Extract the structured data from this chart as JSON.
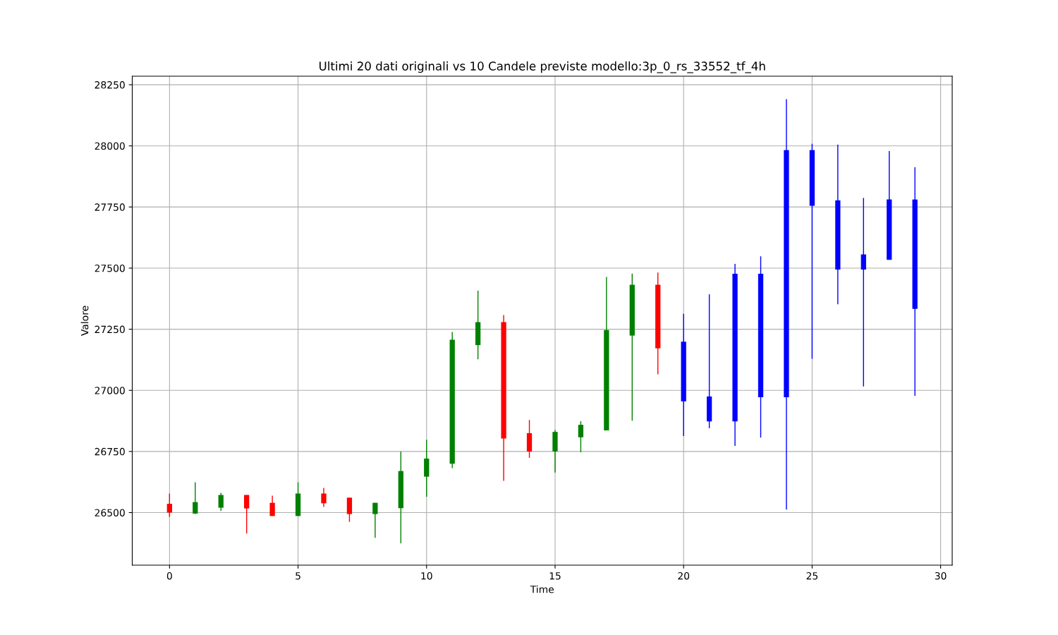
{
  "chart_data": {
    "type": "candlestick",
    "title": "Ultimi 20 dati originali vs 10 Candele previste modello:3p_0_rs_33552_tf_4h",
    "xlabel": "Time",
    "ylabel": "Valore",
    "x": [
      0,
      1,
      2,
      3,
      4,
      5,
      6,
      7,
      8,
      9,
      10,
      11,
      12,
      13,
      14,
      15,
      16,
      17,
      18,
      19,
      20,
      21,
      22,
      23,
      24,
      25,
      26,
      27,
      28,
      29
    ],
    "ohlc": [
      [
        26536,
        26578,
        26482,
        26500
      ],
      [
        26496,
        26624,
        26494,
        26543
      ],
      [
        26520,
        26581,
        26507,
        26572
      ],
      [
        26572,
        26572,
        26414,
        26517
      ],
      [
        26540,
        26569,
        26486,
        26486
      ],
      [
        26486,
        26624,
        26486,
        26578
      ],
      [
        26578,
        26601,
        26523,
        26538
      ],
      [
        26561,
        26561,
        26462,
        26494
      ],
      [
        26494,
        26540,
        26397,
        26540
      ],
      [
        26518,
        26750,
        26374,
        26670
      ],
      [
        26647,
        26798,
        26565,
        26721
      ],
      [
        26700,
        27239,
        26682,
        27207
      ],
      [
        27185,
        27408,
        27127,
        27279
      ],
      [
        27279,
        27308,
        26630,
        26803
      ],
      [
        26825,
        26879,
        26724,
        26750
      ],
      [
        26750,
        26838,
        26664,
        26830
      ],
      [
        26808,
        26874,
        26747,
        26859
      ],
      [
        26836,
        27464,
        26836,
        27247
      ],
      [
        27224,
        27478,
        26876,
        27432
      ],
      [
        27432,
        27482,
        27066,
        27172
      ],
      [
        27199,
        27313,
        26813,
        26955
      ],
      [
        26975,
        27393,
        26845,
        26873
      ],
      [
        26873,
        27517,
        26773,
        27477
      ],
      [
        27477,
        27548,
        26807,
        26972
      ],
      [
        26972,
        28191,
        26512,
        27983
      ],
      [
        27983,
        28009,
        27129,
        27755
      ],
      [
        27777,
        28005,
        27352,
        27494
      ],
      [
        27494,
        27787,
        27016,
        27556
      ],
      [
        27534,
        27979,
        27534,
        27781
      ],
      [
        27781,
        27913,
        26978,
        27333
      ]
    ],
    "colors": [
      "#ff0000",
      "#008000",
      "#008000",
      "#ff0000",
      "#ff0000",
      "#008000",
      "#ff0000",
      "#ff0000",
      "#008000",
      "#008000",
      "#008000",
      "#008000",
      "#008000",
      "#ff0000",
      "#ff0000",
      "#008000",
      "#008000",
      "#008000",
      "#008000",
      "#ff0000",
      "#0000ff",
      "#0000ff",
      "#0000ff",
      "#0000ff",
      "#0000ff",
      "#0000ff",
      "#0000ff",
      "#0000ff",
      "#0000ff",
      "#0000ff"
    ],
    "xlim": [
      -1.45,
      30.45
    ],
    "xticks": [
      0,
      5,
      10,
      15,
      20,
      25,
      30
    ],
    "ylim": [
      26285,
      28285
    ],
    "yticks": [
      26500,
      26750,
      27000,
      27250,
      27500,
      27750,
      28000,
      28250
    ],
    "grid": true
  }
}
